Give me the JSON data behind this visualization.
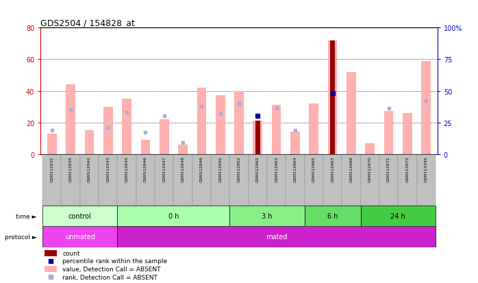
{
  "title": "GDS2504 / 154828_at",
  "samples": [
    "GSM112931",
    "GSM112935",
    "GSM112942",
    "GSM112943",
    "GSM112945",
    "GSM112946",
    "GSM112947",
    "GSM112948",
    "GSM112949",
    "GSM112950",
    "GSM112952",
    "GSM112962",
    "GSM112963",
    "GSM112964",
    "GSM112965",
    "GSM112967",
    "GSM112968",
    "GSM112970",
    "GSM112971",
    "GSM112972",
    "GSM113345"
  ],
  "bar_values": [
    13,
    44,
    15,
    30,
    35,
    9,
    22,
    6,
    42,
    37,
    40,
    21,
    31,
    14,
    32,
    72,
    52,
    7,
    27,
    26,
    59
  ],
  "rank_dots": [
    19,
    35,
    null,
    21,
    33,
    17,
    30,
    9,
    38,
    32,
    40,
    30,
    36,
    19,
    null,
    48,
    null,
    null,
    36,
    null,
    42
  ],
  "count_bars": [
    null,
    null,
    null,
    null,
    null,
    null,
    null,
    null,
    null,
    null,
    null,
    21,
    null,
    null,
    null,
    72,
    null,
    null,
    null,
    null,
    null
  ],
  "count_dots": [
    null,
    null,
    null,
    null,
    null,
    null,
    null,
    null,
    null,
    null,
    null,
    30,
    null,
    null,
    null,
    48,
    null,
    null,
    null,
    null,
    null
  ],
  "bar_color": "#FFB0B0",
  "rank_dot_color": "#AAAADD",
  "count_bar_color": "#990000",
  "count_dot_color": "#000099",
  "ylim_left": [
    0,
    80
  ],
  "ylim_right": [
    0,
    100
  ],
  "yticks_left": [
    0,
    20,
    40,
    60,
    80
  ],
  "yticks_right": [
    0,
    25,
    50,
    75,
    100
  ],
  "ytick_labels_right": [
    "0",
    "25",
    "50",
    "75",
    "100%"
  ],
  "time_groups": [
    {
      "label": "control",
      "start": 0,
      "end": 4,
      "color": "#CCFFCC"
    },
    {
      "label": "0 h",
      "start": 4,
      "end": 10,
      "color": "#AAFFAA"
    },
    {
      "label": "3 h",
      "start": 10,
      "end": 14,
      "color": "#88EE88"
    },
    {
      "label": "6 h",
      "start": 14,
      "end": 17,
      "color": "#66DD66"
    },
    {
      "label": "24 h",
      "start": 17,
      "end": 21,
      "color": "#44CC44"
    }
  ],
  "protocol_groups": [
    {
      "label": "unmated",
      "start": 0,
      "end": 4,
      "color": "#EE44EE"
    },
    {
      "label": "mated",
      "start": 4,
      "end": 21,
      "color": "#CC22CC"
    }
  ],
  "left_axis_color": "#CC0000",
  "right_axis_color": "#0000CC",
  "tick_bg_color": "#C0C0C0"
}
